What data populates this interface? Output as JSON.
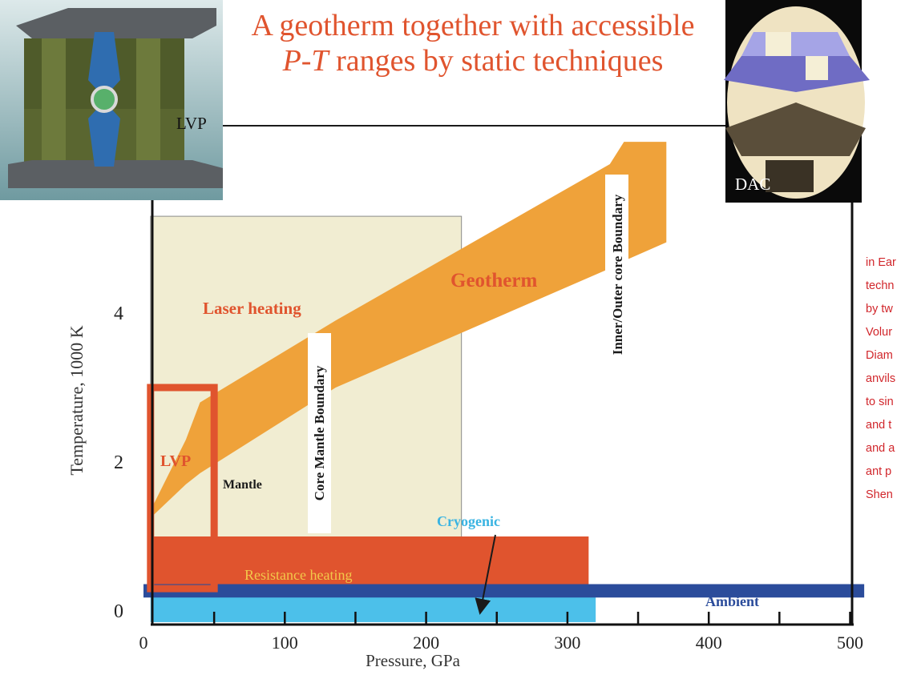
{
  "title": {
    "line1": "A geotherm together with accessible",
    "line2_italic": "P-T",
    "line2_rest": " ranges by static techniques"
  },
  "photos": {
    "lvp_label": "LVP",
    "dac_label": "DAC"
  },
  "chart_data": {
    "type": "diagram",
    "xlabel": "Pressure, GPa",
    "ylabel": "Temperature, 1000 K",
    "xlim": [
      0,
      510
    ],
    "ylim": [
      0,
      6.3
    ],
    "x_ticks": [
      "0",
      "100",
      "200",
      "300",
      "400",
      "500"
    ],
    "y_ticks": [
      "0",
      "2",
      "4"
    ],
    "regions": [
      {
        "label": "Laser heating",
        "x": [
          5,
          225
        ],
        "y": [
          0.3,
          5.3
        ]
      },
      {
        "label": "LVP",
        "x": [
          5,
          50
        ],
        "y": [
          0.3,
          3.0
        ]
      },
      {
        "label": "Resistance heating",
        "x": [
          5,
          315
        ],
        "y": [
          0.3,
          1.0
        ]
      },
      {
        "label": "Cryogenic",
        "x": [
          5,
          320
        ],
        "y": [
          -0.15,
          0.2
        ]
      },
      {
        "label": "Ambient",
        "x": [
          0,
          510
        ],
        "y": [
          0.18,
          0.36
        ]
      }
    ],
    "geotherm": {
      "label": "Geotherm",
      "lower": [
        [
          5,
          1.25
        ],
        [
          30,
          1.7
        ],
        [
          40,
          1.85
        ],
        [
          136,
          3.0
        ],
        [
          330,
          4.6
        ],
        [
          340,
          4.7
        ],
        [
          370,
          4.95
        ]
      ],
      "upper": [
        [
          5,
          1.35
        ],
        [
          30,
          2.3
        ],
        [
          40,
          2.8
        ],
        [
          136,
          3.9
        ],
        [
          330,
          6.0
        ],
        [
          340,
          6.3
        ],
        [
          370,
          6.3
        ]
      ]
    },
    "boundaries": [
      {
        "label": "Core Mantle Boundary",
        "x": 136
      },
      {
        "label": "Inner/Outer core Boundary",
        "x": 330
      }
    ],
    "annotations": [
      "Mantle"
    ]
  },
  "side_text": {
    "lines": [
      "in Ear",
      "techn",
      "by tw",
      "Volur",
      "Diam",
      "anvils",
      "to sin",
      "and t",
      "and a",
      "ant p",
      "Shen"
    ]
  }
}
